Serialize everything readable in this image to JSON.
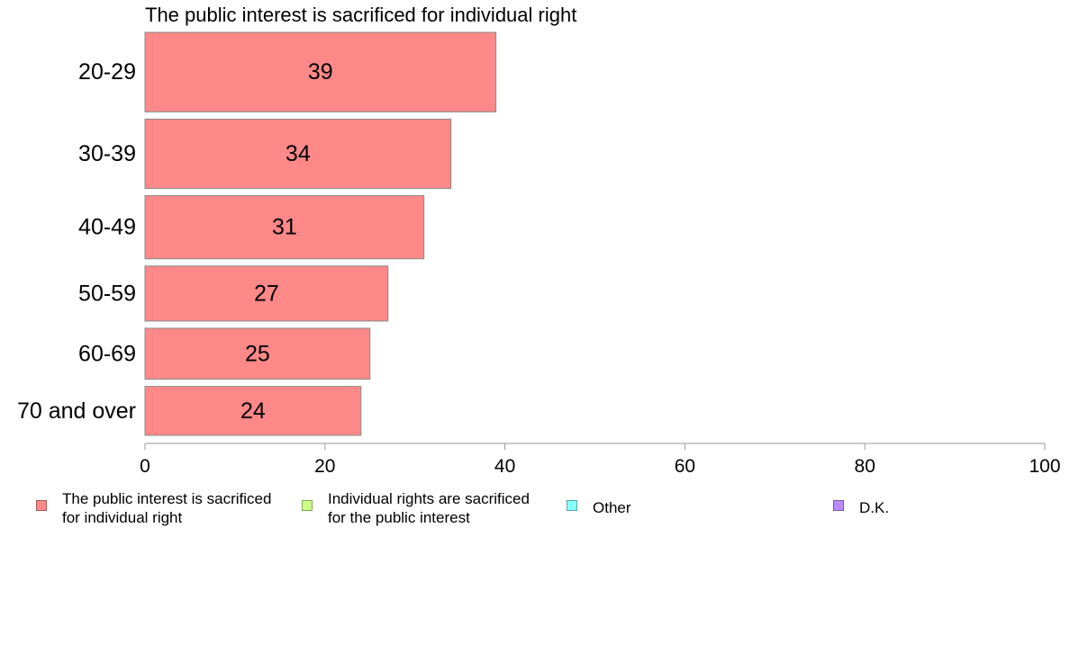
{
  "chart_data": {
    "type": "bar",
    "orientation": "horizontal",
    "title": "The public interest is sacrificed for individual right",
    "categories": [
      "20-29",
      "30-39",
      "40-49",
      "50-59",
      "60-69",
      "70 and over"
    ],
    "series": [
      {
        "name": "The public interest is sacrificed for individual right",
        "values": [
          39,
          34,
          31,
          27,
          25,
          24
        ],
        "color": "#ff8888"
      }
    ],
    "value_labels": [
      "39",
      "34",
      "31",
      "27",
      "25",
      "24"
    ],
    "xlim": [
      0,
      100
    ],
    "xticks": [
      0,
      20,
      40,
      60,
      80,
      100
    ],
    "xtick_labels": [
      "0",
      "20",
      "40",
      "60",
      "80",
      "100"
    ],
    "grid": false,
    "legend_position": "bottom",
    "legend": [
      {
        "label": "The public interest is sacrificed\nfor individual right",
        "color": "#ff8888"
      },
      {
        "label": "Individual rights are sacrificed\nfor the public interest",
        "color": "#ccff88"
      },
      {
        "label": "Other",
        "color": "#88ffff"
      },
      {
        "label": "D.K.",
        "color": "#bb88ff"
      }
    ]
  }
}
